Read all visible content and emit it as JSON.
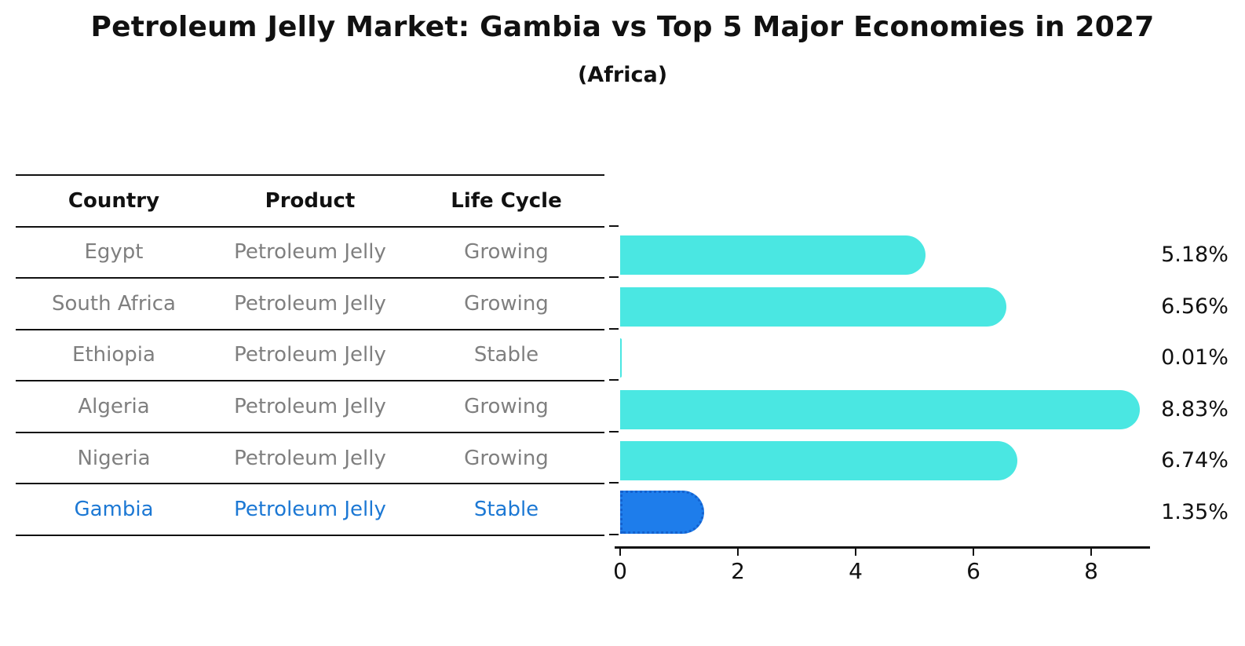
{
  "title": "Petroleum Jelly Market: Gambia vs Top 5 Major Economies in 2027",
  "subtitle": "(Africa)",
  "table": {
    "headers": [
      "Country",
      "Product",
      "Life Cycle"
    ],
    "rows": [
      {
        "country": "Egypt",
        "product": "Petroleum Jelly",
        "life_cycle": "Growing",
        "highlight": false
      },
      {
        "country": "South Africa",
        "product": "Petroleum Jelly",
        "life_cycle": "Growing",
        "highlight": false
      },
      {
        "country": "Ethiopia",
        "product": "Petroleum Jelly",
        "life_cycle": "Stable",
        "highlight": false
      },
      {
        "country": "Algeria",
        "product": "Petroleum Jelly",
        "life_cycle": "Growing",
        "highlight": false
      },
      {
        "country": "Nigeria",
        "product": "Petroleum Jelly",
        "life_cycle": "Growing",
        "highlight": false
      },
      {
        "country": "Gambia",
        "product": "Petroleum Jelly",
        "life_cycle": "Stable",
        "highlight": true
      }
    ]
  },
  "chart_data": {
    "type": "bar",
    "orientation": "horizontal",
    "title": "Petroleum Jelly Market: Gambia vs Top 5 Major Economies in 2027 (Africa)",
    "categories": [
      "Egypt",
      "South Africa",
      "Ethiopia",
      "Algeria",
      "Nigeria",
      "Gambia"
    ],
    "values": [
      5.18,
      6.56,
      0.01,
      8.83,
      6.74,
      1.35
    ],
    "value_labels": [
      "5.18%",
      "6.56%",
      "0.01%",
      "8.83%",
      "6.74%",
      "1.35%"
    ],
    "highlight_index": 5,
    "xticks": [
      "0",
      "2",
      "4",
      "6",
      "8"
    ],
    "xtick_values": [
      0,
      2,
      4,
      6,
      8
    ],
    "xlim": [
      0,
      9.0
    ],
    "grid": false,
    "legend": "none",
    "colors": {
      "bar": "#4ae7e2",
      "highlight_bar": "#1e7deb",
      "highlight_border": "#1461ce",
      "row_text": "#7f7f7f",
      "highlight_text": "#1c78d4",
      "axis": "#111111"
    }
  }
}
